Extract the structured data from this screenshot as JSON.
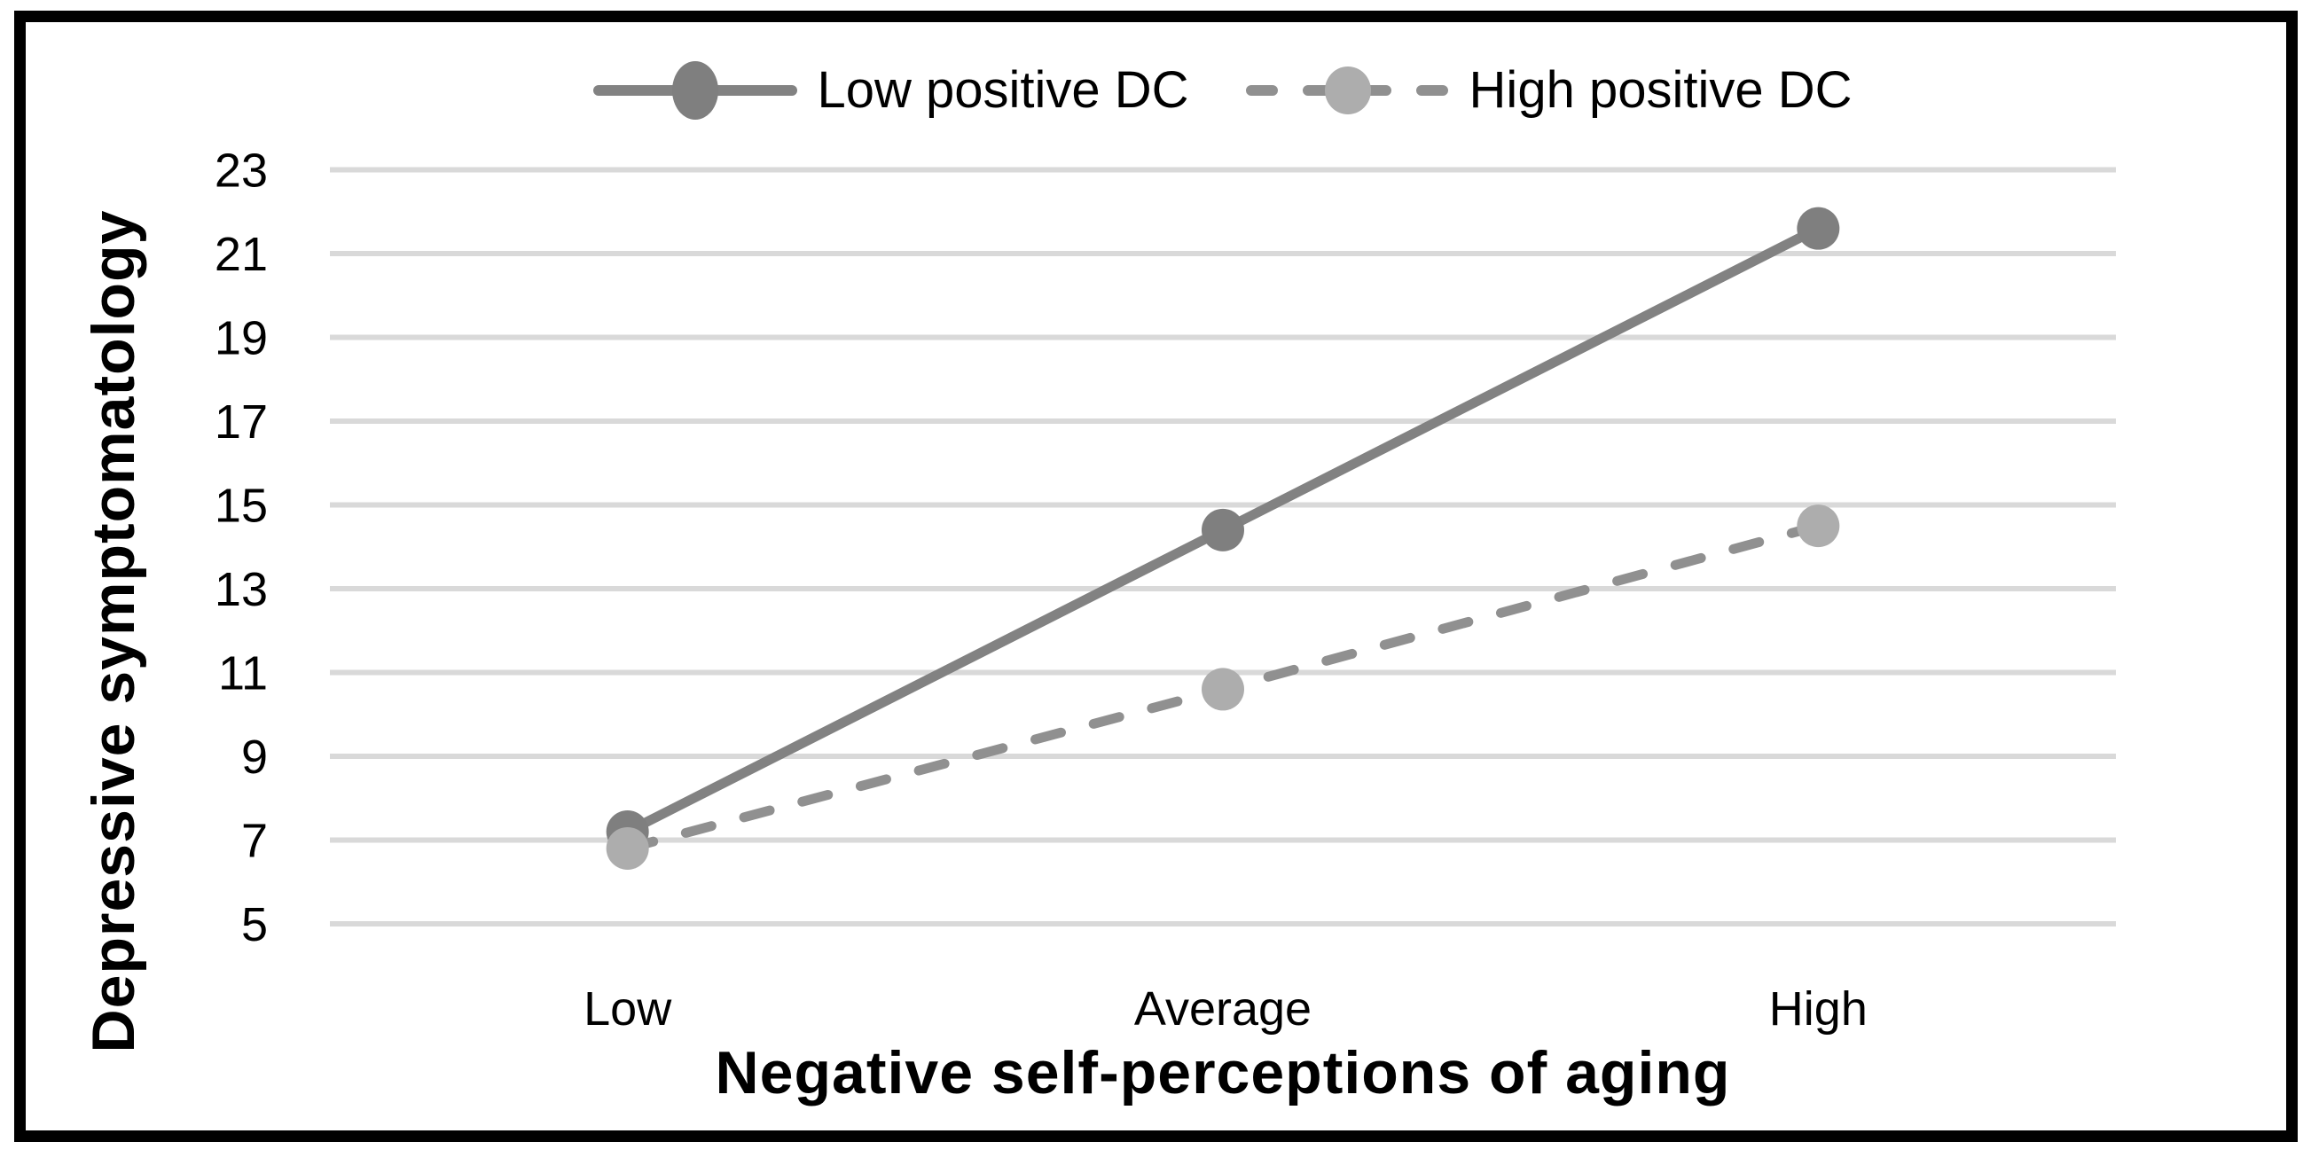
{
  "figure": {
    "border_color": "#000000",
    "background_color": "#ffffff"
  },
  "chart_data": {
    "type": "line",
    "categories": [
      "Low",
      "Average",
      "High"
    ],
    "series": [
      {
        "name": "Low positive DC",
        "values": [
          7.2,
          14.4,
          21.6
        ],
        "line_style": "solid",
        "line_color": "#828282",
        "marker_color": "#7f7f7f",
        "marker_shape": "circle"
      },
      {
        "name": "High positive DC",
        "values": [
          6.8,
          10.6,
          14.5
        ],
        "line_style": "dashed",
        "line_color": "#909090",
        "marker_color": "#adadad",
        "marker_shape": "circle"
      }
    ],
    "title": "",
    "xlabel": "Negative self-perceptions of aging",
    "ylabel": "Depressive symptomatology",
    "ylim": [
      5,
      23
    ],
    "yticks": [
      5,
      7,
      9,
      11,
      13,
      15,
      17,
      19,
      21,
      23
    ],
    "grid": "horizontal",
    "gridline_color": "#d9d9d9",
    "tick_label_color": "#000000",
    "legend_position": "top-center"
  }
}
